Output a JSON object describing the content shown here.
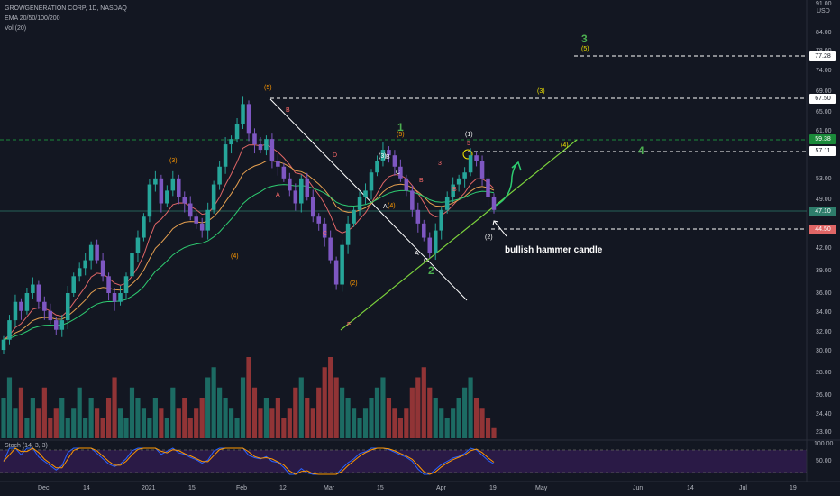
{
  "header": {
    "symbol_line": "GROWGENERATION CORP, 1D, NASDAQ",
    "ema_line": "EMA 20/50/100/200",
    "vol_line": "Vol (20)",
    "stoch_line": "Stoch (14, 3, 3)"
  },
  "price_axis": {
    "labels": [
      "91.00",
      "84.00",
      "78.00",
      "74.00",
      "69.00",
      "65.00",
      "61.00",
      "53.00",
      "49.00",
      "42.00",
      "39.00",
      "36.00",
      "34.00",
      "32.00",
      "30.00",
      "28.00",
      "26.00",
      "24.40",
      "23.00"
    ],
    "currency": "USD",
    "stoch_labels": [
      "100.00",
      "50.00"
    ]
  },
  "price_tags": [
    {
      "label": "77.28",
      "bg": "#ffffff",
      "fg": "#131722"
    },
    {
      "label": "67.50",
      "bg": "#ffffff",
      "fg": "#131722"
    },
    {
      "label": "59.38",
      "bg": "#1b8a3a",
      "fg": "#ffffff"
    },
    {
      "label": "57.11",
      "bg": "#ffffff",
      "fg": "#131722"
    },
    {
      "label": "47.10",
      "bg": "#2e7d6b",
      "fg": "#ffffff"
    },
    {
      "label": "44.50",
      "bg": "#e06666",
      "fg": "#ffffff"
    }
  ],
  "time_axis": [
    "Dec",
    "14",
    "2021",
    "15",
    "Feb",
    "12",
    "Mar",
    "15",
    "Apr",
    "19",
    "May",
    "Jun",
    "14",
    "Jul",
    "19"
  ],
  "annotation": "bullish hammer candle",
  "wave_labels": {
    "big_green": [
      "1",
      "2",
      "3",
      "4"
    ],
    "orange": [
      "(3)",
      "(4)",
      "(5)",
      "(2)",
      "(3)",
      "(4)",
      "(5)",
      "(1)",
      "(2)"
    ],
    "yellow_targets": [
      "(3)",
      "(4)",
      "(5)"
    ],
    "abc": [
      "B",
      "A",
      "C",
      "D",
      "E",
      "A",
      "B",
      "C",
      "A",
      "B",
      "C",
      "B",
      "3",
      "5",
      "(1)",
      "(2)"
    ]
  },
  "colors": {
    "background": "#131722",
    "up": "#26a69a",
    "down": "#ef5350",
    "volume_up": "#1e7a6e",
    "volume_down": "#a83a3a",
    "candle_up": "#b39ddb",
    "candle_down": "#7e57c2",
    "ema20": "#e06666",
    "ema50": "#e6a050",
    "ema100": "#2ecc71",
    "trend": "#7cd33c",
    "guide": "#ffffff",
    "stoch_fill": "#3b1f5e",
    "stoch_k": "#2962ff",
    "stoch_d": "#ff9800",
    "label_green": "#4caf50",
    "label_orange": "#ff9800",
    "label_yellow": "#f3e600"
  },
  "chart_data": {
    "type": "candlestick",
    "title": "GROWGENERATION CORP, 1D, NASDAQ",
    "levels": [
      77.28,
      67.5,
      59.38,
      57.11,
      47.1,
      44.5
    ],
    "series": [
      {
        "name": "price",
        "values": [
          31,
          33,
          35,
          34,
          36,
          37,
          35,
          34,
          33,
          32,
          33,
          36,
          38,
          39,
          40,
          42,
          40,
          38,
          36,
          35,
          36,
          38,
          41,
          43,
          46,
          51,
          52,
          48,
          50,
          52,
          49,
          48,
          46,
          45,
          44,
          47,
          51,
          54,
          58,
          59,
          62,
          66,
          60,
          58,
          57,
          59,
          55,
          54,
          52,
          50,
          48,
          52,
          49,
          46,
          45,
          43,
          40,
          37,
          42,
          45,
          47,
          49,
          50,
          53,
          55,
          57,
          56,
          54,
          52,
          50,
          47,
          45,
          43,
          41,
          44,
          47,
          49,
          51,
          52,
          53,
          56,
          55,
          52,
          49,
          47
        ]
      },
      {
        "name": "volume",
        "values": [
          4,
          6,
          3,
          5,
          2,
          4,
          3,
          5,
          2,
          3,
          4,
          2,
          3,
          5,
          2,
          4,
          3,
          2,
          4,
          6,
          3,
          2,
          5,
          4,
          3,
          2,
          4,
          3,
          2,
          5,
          3,
          4,
          2,
          3,
          4,
          6,
          7,
          5,
          4,
          3,
          2,
          6,
          8,
          5,
          3,
          4,
          3,
          4,
          2,
          3,
          5,
          6,
          4,
          3,
          5,
          7,
          8,
          6,
          5,
          4,
          3,
          2,
          3,
          4,
          5,
          6,
          4,
          3,
          2,
          3,
          5,
          6,
          7,
          5,
          4,
          3,
          2,
          3,
          4,
          5,
          6,
          4,
          3,
          2,
          1
        ]
      }
    ]
  }
}
